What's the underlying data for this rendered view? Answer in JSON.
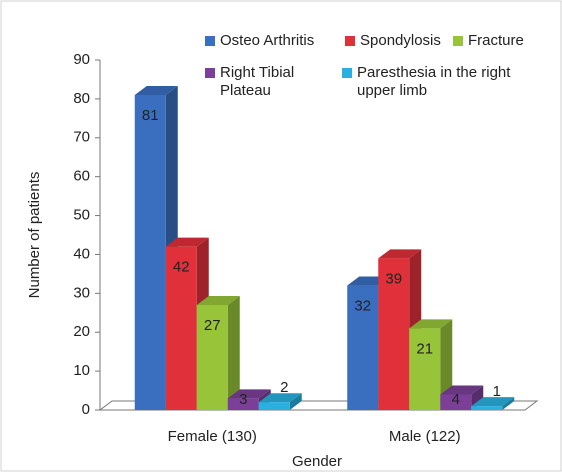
{
  "chart_data": {
    "type": "bar3d",
    "categories": [
      "Female (130)",
      "Male (122)"
    ],
    "series": [
      {
        "name": "Osteo Arthritis",
        "color": "#3a6fc0",
        "values": [
          81,
          32
        ]
      },
      {
        "name": "Spondylosis",
        "color": "#e0303a",
        "values": [
          42,
          39
        ]
      },
      {
        "name": "Fracture",
        "color": "#98c43a",
        "values": [
          27,
          21
        ]
      },
      {
        "name": "Right Tibial Plateau",
        "color": "#7b3f98",
        "values": [
          3,
          4
        ]
      },
      {
        "name": "Paresthesia in the right upper limb",
        "color": "#2ab0e0",
        "values": [
          2,
          1
        ]
      }
    ],
    "xlabel": "Gender",
    "ylabel": "Number of patients",
    "ylim": [
      0,
      90
    ],
    "yticks": [
      0,
      10,
      20,
      30,
      40,
      50,
      60,
      70,
      80,
      90
    ]
  }
}
